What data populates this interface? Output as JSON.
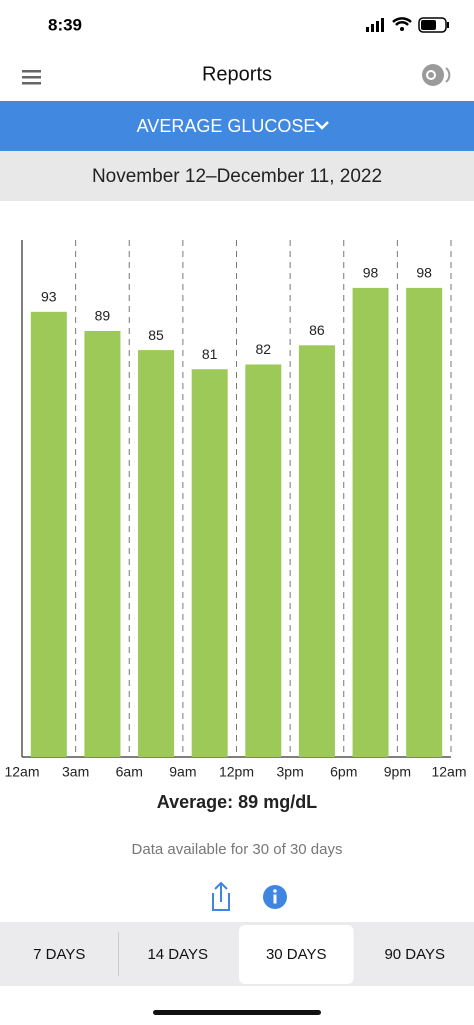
{
  "status_bar": {
    "time": "8:39"
  },
  "header": {
    "title": "Reports"
  },
  "report_selector": {
    "label": "AVERAGE GLUCOSE"
  },
  "date_range": "November 12–December 11, 2022",
  "chart_data": {
    "type": "histogram",
    "bins": [
      "12am",
      "3am",
      "6am",
      "9am",
      "12pm",
      "3pm",
      "6pm",
      "9pm",
      "12am"
    ],
    "values": [
      93,
      89,
      85,
      81,
      82,
      86,
      98,
      98
    ],
    "color": "#9cc957",
    "ylim": [
      0,
      108
    ]
  },
  "summary": {
    "average": "Average: 89 mg/dL",
    "availability": "Data available for 30 of 30 days"
  },
  "tabs": {
    "items": [
      "7 DAYS",
      "14 DAYS",
      "30 DAYS",
      "90 DAYS"
    ],
    "selected": 2
  }
}
